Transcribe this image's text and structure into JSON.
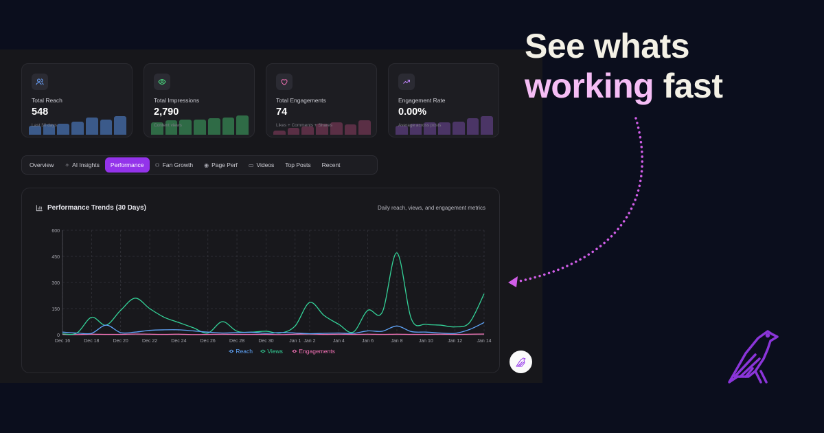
{
  "headline": {
    "line1": "See whats",
    "line2_highlight": "working",
    "line2_rest": " fast"
  },
  "stat_cards": [
    {
      "label": "Total Reach",
      "value": "548",
      "sub": "Last 30 days",
      "icon": "users-icon",
      "color": "#3b5a8a",
      "icon_color": "#6aa3ff",
      "spark": [
        0.45,
        0.5,
        0.55,
        0.65,
        0.85,
        0.75,
        0.9
      ]
    },
    {
      "label": "Total Impressions",
      "value": "2,790",
      "sub": "Content views",
      "icon": "eye-icon",
      "color": "#2f6b46",
      "icon_color": "#4ade80",
      "spark": [
        0.6,
        0.7,
        0.75,
        0.75,
        0.8,
        0.85,
        0.95
      ]
    },
    {
      "label": "Total Engagements",
      "value": "74",
      "sub": "Likes + Comments + Shares",
      "icon": "heart-icon",
      "color": "#5a2f45",
      "icon_color": "#f472b6",
      "spark": [
        0.2,
        0.35,
        0.4,
        0.55,
        0.6,
        0.5,
        0.7
      ]
    },
    {
      "label": "Engagement Rate",
      "value": "0.00%",
      "sub": "Average across posts",
      "icon": "trending-up-icon",
      "color": "#4b3566",
      "icon_color": "#c084fc",
      "spark": [
        0.45,
        0.55,
        0.6,
        0.6,
        0.65,
        0.8,
        0.9
      ]
    }
  ],
  "tabs": [
    {
      "label": "Overview",
      "icon": "",
      "active": false
    },
    {
      "label": "AI Insights",
      "icon": "sparkles-icon",
      "active": false
    },
    {
      "label": "Performance",
      "icon": "",
      "active": true
    },
    {
      "label": "Fan Growth",
      "icon": "user-plus-icon",
      "active": false
    },
    {
      "label": "Page Perf",
      "icon": "eye-icon",
      "active": false
    },
    {
      "label": "Videos",
      "icon": "video-icon",
      "active": false
    },
    {
      "label": "Top Posts",
      "icon": "",
      "active": false
    },
    {
      "label": "Recent",
      "icon": "",
      "active": false
    }
  ],
  "chart": {
    "title": "Performance Trends (30 Days)",
    "description": "Daily reach, views, and engagement metrics"
  },
  "chart_data": {
    "type": "line",
    "x": [
      "Dec 16",
      "Dec 17",
      "Dec 18",
      "Dec 19",
      "Dec 20",
      "Dec 21",
      "Dec 22",
      "Dec 23",
      "Dec 24",
      "Dec 25",
      "Dec 26",
      "Dec 27",
      "Dec 28",
      "Dec 29",
      "Dec 30",
      "Dec 31",
      "Jan 1",
      "Jan 2",
      "Jan 3",
      "Jan 4",
      "Jan 5",
      "Jan 6",
      "Jan 7",
      "Jan 8",
      "Jan 9",
      "Jan 10",
      "Jan 11",
      "Jan 12",
      "Jan 13",
      "Jan 14"
    ],
    "tick_labels": [
      "Dec 16",
      "Dec 18",
      "Dec 20",
      "Dec 22",
      "Dec 24",
      "Dec 26",
      "Dec 28",
      "Dec 30",
      "Jan 1",
      "Jan 2",
      "Jan 4",
      "Jan 6",
      "Jan 8",
      "Jan 10",
      "Jan 12",
      "Jan 14"
    ],
    "y_ticks": [
      0,
      150,
      300,
      450,
      600
    ],
    "ylim": [
      0,
      600
    ],
    "grid": true,
    "legend": "bottom-center",
    "series": [
      {
        "name": "Reach",
        "color": "#60a5fa",
        "values": [
          15,
          10,
          8,
          55,
          12,
          15,
          25,
          28,
          28,
          22,
          15,
          10,
          12,
          14,
          8,
          12,
          10,
          6,
          8,
          10,
          8,
          22,
          20,
          50,
          18,
          15,
          10,
          8,
          30,
          70
        ]
      },
      {
        "name": "Views",
        "color": "#34d399",
        "values": [
          5,
          10,
          100,
          55,
          140,
          210,
          150,
          100,
          70,
          40,
          10,
          75,
          20,
          15,
          20,
          10,
          50,
          185,
          110,
          60,
          15,
          140,
          130,
          470,
          90,
          60,
          55,
          45,
          70,
          235
        ]
      },
      {
        "name": "Engagements",
        "color": "#f472b6",
        "values": [
          2,
          1,
          3,
          2,
          2,
          4,
          3,
          2,
          3,
          1,
          2,
          3,
          2,
          2,
          2,
          1,
          3,
          4,
          2,
          3,
          2,
          3,
          2,
          3,
          2,
          2,
          3,
          2,
          3,
          4
        ]
      }
    ]
  }
}
